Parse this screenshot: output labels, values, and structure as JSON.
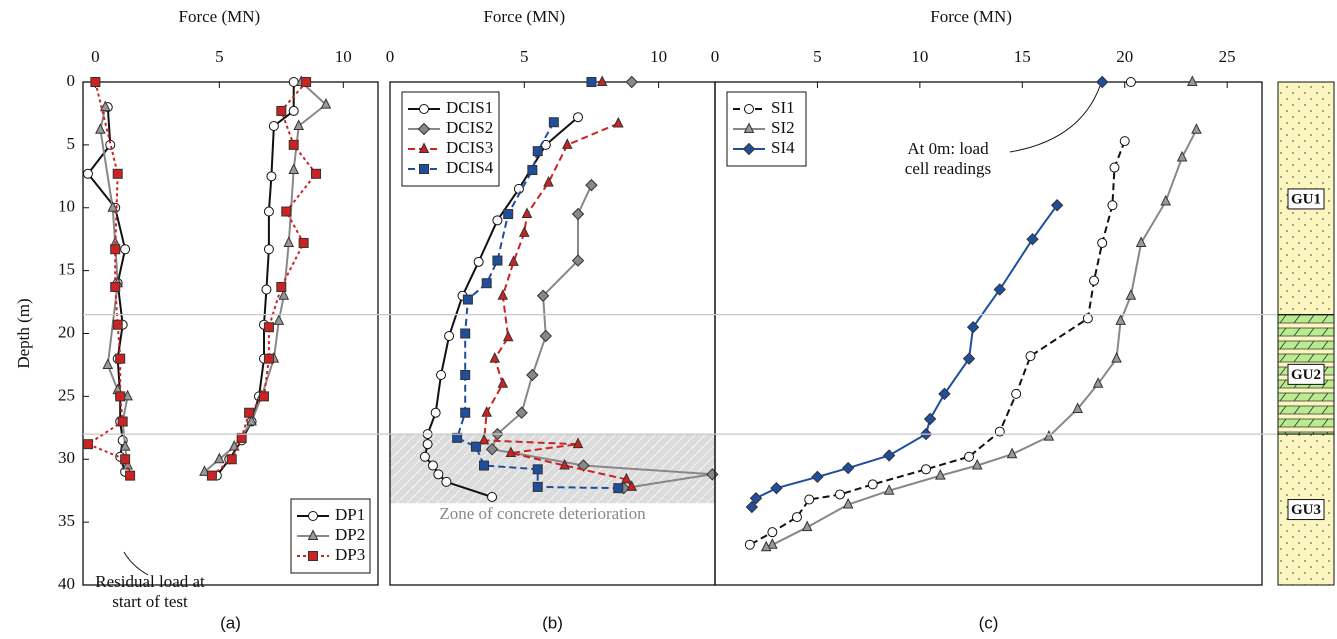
{
  "chart_data": [
    {
      "type": "line",
      "panel_label": "(a)",
      "xlabel": "Force  (MN)",
      "ylabel": "Depth  (m)",
      "xlim": [
        -0.5,
        11.4
      ],
      "xticks": [
        0,
        5,
        10
      ],
      "ylim": [
        0,
        40
      ],
      "yticks": [
        0,
        5,
        10,
        15,
        20,
        25,
        30,
        35,
        40
      ],
      "legend": "lower right",
      "annotation": [
        "Residual load at",
        "start of test"
      ],
      "series": [
        {
          "name": "DP1",
          "color": "#111111",
          "marker": "circle",
          "marker_fill": "#ffffff",
          "dash": "solid",
          "values": [
            0.5,
            0.6,
            -0.3,
            0.8,
            1.2,
            0.9,
            1.1,
            0.9,
            1.0,
            1.0,
            1.1,
            1.0,
            1.2,
            null,
            8.0,
            8.0,
            7.2,
            7.1,
            7.0,
            7.0,
            6.9,
            6.8,
            6.8,
            6.6,
            6.3,
            5.9,
            5.4,
            4.9
          ],
          "depth": [
            2,
            5,
            7.3,
            10,
            13.3,
            16,
            19.3,
            22,
            25,
            27,
            28.5,
            29.8,
            31,
            null,
            0,
            2.3,
            3.5,
            7.5,
            10.3,
            13.3,
            16.5,
            19.3,
            22,
            25,
            27,
            28.5,
            30,
            31.3
          ]
        },
        {
          "name": "DP2",
          "color": "#888888",
          "marker": "triangle",
          "marker_fill": "#999999",
          "dash": "solid",
          "values": [
            0.4,
            0.2,
            0.7,
            0.8,
            0.9,
            0.5,
            0.9,
            1.3,
            1.1,
            1.2,
            1.3,
            null,
            8.3,
            9.3,
            8.2,
            8.0,
            7.8,
            7.6,
            7.4,
            7.2,
            6.7,
            6.3,
            5.6,
            5.0,
            4.4
          ],
          "depth": [
            2,
            3.8,
            10,
            12.8,
            16,
            22.5,
            24.5,
            25,
            27,
            29,
            30.5,
            null,
            0,
            1.8,
            3.5,
            7,
            12.8,
            17,
            19,
            22,
            25,
            27,
            29,
            30,
            31
          ]
        },
        {
          "name": "DP3",
          "color": "#cc2222",
          "marker": "square",
          "marker_fill": "#cc2222",
          "dash": "dotted",
          "values": [
            0.0,
            0.9,
            0.8,
            0.8,
            0.9,
            1.0,
            1.0,
            1.1,
            -0.3,
            1.2,
            1.4,
            null,
            8.5,
            7.5,
            8.0,
            8.9,
            7.7,
            8.4,
            7.5,
            7.0,
            7.0,
            6.8,
            6.2,
            5.9,
            5.5,
            4.7
          ],
          "depth": [
            0,
            7.3,
            13.3,
            16.3,
            19.3,
            22,
            25,
            27,
            28.8,
            30,
            31.3,
            null,
            0,
            2.3,
            5,
            7.3,
            10.3,
            12.8,
            16.3,
            19.5,
            22,
            25,
            26.3,
            28.3,
            30,
            31.3
          ]
        }
      ]
    },
    {
      "type": "line",
      "panel_label": "(b)",
      "xlabel": "Force  (MN)",
      "xlim": [
        0,
        12.1
      ],
      "xticks": [
        0,
        5,
        10
      ],
      "ylim": [
        0,
        40
      ],
      "legend": "upper left",
      "shaded_region": {
        "label": "Zone of concrete deterioration",
        "depth": [
          28,
          33.5
        ]
      },
      "series": [
        {
          "name": "DCIS1",
          "color": "#111111",
          "marker": "circle",
          "marker_fill": "#ffffff",
          "dash": "solid",
          "values": [
            7.0,
            5.8,
            4.8,
            4.0,
            3.3,
            2.7,
            2.2,
            1.9,
            1.7,
            1.4,
            1.4,
            1.3,
            1.6,
            1.8,
            2.1,
            3.8
          ],
          "depth": [
            2.8,
            5,
            8.5,
            11,
            14.3,
            17,
            20.2,
            23.3,
            26.3,
            28,
            28.8,
            29.8,
            30.5,
            31.2,
            31.8,
            33
          ]
        },
        {
          "name": "DCIS2",
          "color": "#888888",
          "marker": "diamond",
          "marker_fill": "#888888",
          "dash": "solid",
          "values": [
            9.0,
            null,
            7.5,
            7.0,
            7.0,
            5.7,
            5.8,
            5.3,
            4.9,
            4.0,
            3.8,
            7.2,
            12.0,
            8.7
          ],
          "depth": [
            0,
            null,
            8.2,
            10.5,
            14.2,
            17,
            20.2,
            23.3,
            26.3,
            28,
            29.2,
            30.5,
            31.2,
            32.3
          ]
        },
        {
          "name": "DCIS3",
          "color": "#cc2222",
          "marker": "triangle",
          "marker_fill": "#cc2222",
          "dash": "dashed",
          "values": [
            7.9,
            null,
            8.5,
            6.6,
            5.9,
            5.1,
            5.0,
            4.6,
            4.2,
            4.4,
            3.9,
            4.2,
            3.6,
            3.5,
            7.0,
            4.5,
            6.5,
            8.8,
            9.0
          ],
          "depth": [
            0,
            null,
            3.3,
            5,
            8,
            10.5,
            12,
            14.3,
            17,
            20.3,
            22,
            24,
            26.3,
            28.5,
            28.8,
            29.5,
            30.5,
            31.6,
            32.2
          ]
        },
        {
          "name": "DCIS4",
          "color": "#1f4e9c",
          "marker": "square",
          "marker_fill": "#1f4e9c",
          "dash": "dashed",
          "values": [
            7.5,
            null,
            6.1,
            5.5,
            5.3,
            4.4,
            4.0,
            3.6,
            2.9,
            2.8,
            2.8,
            2.8,
            2.5,
            3.2,
            3.5,
            5.5,
            5.5,
            8.5
          ],
          "depth": [
            0,
            null,
            3.2,
            5.5,
            7,
            10.5,
            14.2,
            16,
            17.3,
            20,
            23.3,
            26.3,
            28.3,
            29,
            30.5,
            30.8,
            32.2,
            32.3
          ]
        }
      ]
    },
    {
      "type": "line",
      "panel_label": "(c)",
      "xlabel": "Force  (MN)",
      "xlim": [
        0,
        26.7
      ],
      "xticks": [
        0,
        5,
        10,
        15,
        20,
        25
      ],
      "ylim": [
        0,
        40
      ],
      "legend": "upper left",
      "annotation": [
        "At 0m: load",
        "cell readings"
      ],
      "series": [
        {
          "name": "SI1",
          "color": "#111111",
          "marker": "circle",
          "marker_fill": "#ffffff",
          "dash": "dashed",
          "values": [
            20.3,
            null,
            20.0,
            19.5,
            19.4,
            18.9,
            18.5,
            18.2,
            15.4,
            14.7,
            13.9,
            12.4,
            10.3,
            7.7,
            6.1,
            4.6,
            4.0,
            2.8,
            1.7
          ],
          "depth": [
            0,
            null,
            4.7,
            6.8,
            9.8,
            12.8,
            15.8,
            18.8,
            21.8,
            24.8,
            27.8,
            29.8,
            30.8,
            32,
            32.8,
            33.2,
            34.6,
            35.8,
            36.8
          ]
        },
        {
          "name": "SI2",
          "color": "#888888",
          "marker": "triangle",
          "marker_fill": "#999999",
          "dash": "solid",
          "values": [
            23.3,
            null,
            23.5,
            22.8,
            22.0,
            20.8,
            20.3,
            19.8,
            19.6,
            18.7,
            17.7,
            16.3,
            14.5,
            12.8,
            11.0,
            8.5,
            6.5,
            4.5,
            2.8,
            2.5
          ],
          "depth": [
            0,
            null,
            3.8,
            6,
            9.5,
            12.8,
            17,
            19,
            22,
            24,
            26,
            28.2,
            29.6,
            30.5,
            31.3,
            32.5,
            33.6,
            35.4,
            36.8,
            37
          ]
        },
        {
          "name": "SI4",
          "color": "#1f4e9c",
          "marker": "diamond",
          "marker_fill": "#1f4e9c",
          "dash": "solid",
          "values": [
            18.9,
            null,
            16.7,
            15.5,
            13.9,
            12.6,
            12.4,
            11.2,
            10.5,
            10.3,
            8.5,
            6.5,
            5.0,
            3.0,
            2.0,
            1.8
          ],
          "depth": [
            0,
            null,
            9.8,
            12.5,
            16.5,
            19.5,
            22,
            24.8,
            26.8,
            28,
            29.7,
            30.7,
            31.4,
            32.3,
            33.1,
            33.8
          ]
        }
      ]
    }
  ],
  "soil_column": {
    "units": [
      {
        "label": "GU1",
        "top": 0,
        "bottom": 18.5
      },
      {
        "label": "GU2",
        "top": 18.5,
        "bottom": 28
      },
      {
        "label": "GU3",
        "top": 28,
        "bottom": 40
      }
    ]
  }
}
